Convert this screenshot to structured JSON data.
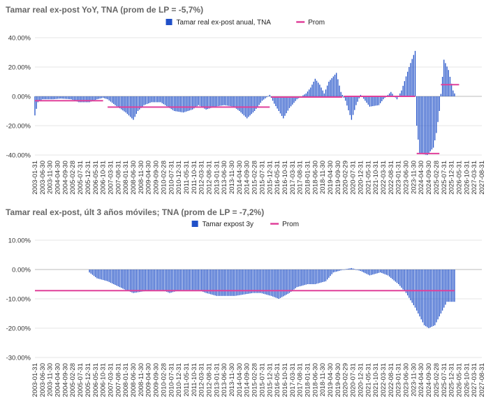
{
  "colors": {
    "bar": "#2050c8",
    "avg": "#e0409a",
    "grid": "#e6e6e6",
    "zero": "#bbbbbb"
  },
  "chart_data": [
    {
      "type": "bar",
      "title": "Tamar real ex-post YoY, TNA (prom de LP = -5,7%)",
      "ylim": [
        -40,
        40
      ],
      "yticks": [
        "40.00%",
        "20.00%",
        "0.00%",
        "-20.00%",
        "-40.00%"
      ],
      "legend": {
        "placement": "top-center",
        "bar_label": "Tamar real ex-post anual, TNA",
        "line_label": "Prom"
      },
      "x_start": "2003-01",
      "x_end": "2027-08",
      "xticks": [
        "2003-01-31",
        "2003-06-30",
        "2003-11-30",
        "2004-04-30",
        "2004-09-30",
        "2005-02-28",
        "2005-07-31",
        "2005-12-31",
        "2006-05-31",
        "2006-10-31",
        "2007-03-31",
        "2007-08-31",
        "2008-01-31",
        "2008-06-30",
        "2008-11-30",
        "2009-04-30",
        "2009-09-30",
        "2010-02-28",
        "2010-07-31",
        "2010-12-31",
        "2011-05-31",
        "2011-10-31",
        "2012-03-31",
        "2012-08-31",
        "2013-01-31",
        "2013-06-30",
        "2013-11-30",
        "2014-04-30",
        "2014-09-30",
        "2015-02-28",
        "2015-07-31",
        "2015-12-31",
        "2016-05-31",
        "2016-10-31",
        "2017-03-31",
        "2017-08-31",
        "2018-01-31",
        "2018-06-30",
        "2018-11-30",
        "2019-04-30",
        "2019-09-30",
        "2020-02-29",
        "2020-07-31",
        "2020-12-31",
        "2021-05-31",
        "2021-10-31",
        "2022-03-31",
        "2022-08-31",
        "2023-01-31",
        "2023-06-30",
        "2023-11-30",
        "2024-04-30",
        "2024-09-30",
        "2025-02-28",
        "2025-07-31",
        "2025-12-31",
        "2026-05-31",
        "2026-10-31",
        "2027-03-31",
        "2027-08-31"
      ],
      "series_keypoints": [
        [
          "2003-01",
          -13
        ],
        [
          "2003-03",
          -4
        ],
        [
          "2003-06",
          -2
        ],
        [
          "2004-01",
          -2
        ],
        [
          "2004-06",
          -1.5
        ],
        [
          "2005-01",
          -2
        ],
        [
          "2005-06",
          -4
        ],
        [
          "2006-01",
          -4
        ],
        [
          "2006-06",
          -2
        ],
        [
          "2006-10",
          -1
        ],
        [
          "2007-01",
          -2
        ],
        [
          "2007-06",
          -6
        ],
        [
          "2008-01",
          -11
        ],
        [
          "2008-06",
          -16
        ],
        [
          "2008-09",
          -10
        ],
        [
          "2009-01",
          -6
        ],
        [
          "2009-06",
          -4
        ],
        [
          "2009-12",
          -4
        ],
        [
          "2010-03",
          -6
        ],
        [
          "2010-09",
          -10
        ],
        [
          "2011-03",
          -11
        ],
        [
          "2011-09",
          -9
        ],
        [
          "2012-01",
          -6
        ],
        [
          "2012-06",
          -9
        ],
        [
          "2012-12",
          -7
        ],
        [
          "2013-06",
          -6
        ],
        [
          "2013-12",
          -7
        ],
        [
          "2014-04",
          -10
        ],
        [
          "2014-09",
          -15
        ],
        [
          "2015-02",
          -10
        ],
        [
          "2015-07",
          -3
        ],
        [
          "2015-12",
          1
        ],
        [
          "2016-03",
          -5
        ],
        [
          "2016-09",
          -15
        ],
        [
          "2017-01",
          -8
        ],
        [
          "2017-06",
          -2
        ],
        [
          "2017-12",
          2
        ],
        [
          "2018-03",
          6
        ],
        [
          "2018-06",
          12
        ],
        [
          "2018-09",
          8
        ],
        [
          "2018-12",
          2
        ],
        [
          "2019-03",
          10
        ],
        [
          "2019-08",
          16
        ],
        [
          "2019-11",
          3
        ],
        [
          "2020-02",
          -3
        ],
        [
          "2020-06",
          -16
        ],
        [
          "2020-09",
          -6
        ],
        [
          "2020-12",
          1
        ],
        [
          "2021-06",
          -7
        ],
        [
          "2021-12",
          -6
        ],
        [
          "2022-03",
          -2
        ],
        [
          "2022-08",
          3
        ],
        [
          "2022-12",
          -2
        ],
        [
          "2023-03",
          4
        ],
        [
          "2023-08",
          20
        ],
        [
          "2023-12",
          31
        ],
        [
          "2024-01",
          -20
        ],
        [
          "2024-03",
          -39
        ],
        [
          "2024-08",
          -40
        ],
        [
          "2024-12",
          -35
        ],
        [
          "2025-02",
          -25
        ],
        [
          "2025-04",
          -10
        ],
        [
          "2025-07",
          25
        ],
        [
          "2025-10",
          18
        ],
        [
          "2026-01",
          4
        ],
        [
          "2026-02",
          2
        ]
      ],
      "averages": [
        {
          "from": "2003-01",
          "to": "2006-10",
          "value": -3
        },
        {
          "from": "2007-01",
          "to": "2015-12",
          "value": -7.3
        },
        {
          "from": "2016-01",
          "to": "2019-12",
          "value": -0.5
        },
        {
          "from": "2020-01",
          "to": "2023-12",
          "value": 0
        },
        {
          "from": "2024-01",
          "to": "2025-04",
          "value": -39
        },
        {
          "from": "2025-05",
          "to": "2026-05",
          "value": 8
        }
      ]
    },
    {
      "type": "bar",
      "title": "Tamar real ex-post, últ 3 años móviles; TNA (prom de LP = -7,2%)",
      "ylim": [
        -30,
        10
      ],
      "yticks": [
        "10.00%",
        "0.00%",
        "-10.00%",
        "-20.00%",
        "-30.00%"
      ],
      "legend": {
        "placement": "top-center",
        "bar_label": "Tamar expost 3y",
        "line_label": "Prom"
      },
      "x_start": "2003-01",
      "x_end": "2027-08",
      "xticks": [
        "2003-01-31",
        "2003-06-30",
        "2003-11-30",
        "2004-04-30",
        "2004-09-30",
        "2005-02-28",
        "2005-07-31",
        "2005-12-31",
        "2006-05-31",
        "2006-10-31",
        "2007-03-31",
        "2007-08-31",
        "2008-01-31",
        "2008-06-30",
        "2008-11-30",
        "2009-04-30",
        "2009-09-30",
        "2010-02-28",
        "2010-07-31",
        "2010-12-31",
        "2011-05-31",
        "2011-10-31",
        "2012-03-31",
        "2012-08-31",
        "2013-01-31",
        "2013-06-30",
        "2013-11-30",
        "2014-04-30",
        "2014-09-30",
        "2015-02-28",
        "2015-07-31",
        "2015-12-31",
        "2016-05-31",
        "2016-10-31",
        "2017-03-31",
        "2017-08-31",
        "2018-01-31",
        "2018-06-30",
        "2018-11-30",
        "2019-04-30",
        "2019-09-30",
        "2020-02-29",
        "2020-07-31",
        "2020-12-31",
        "2021-05-31",
        "2021-10-31",
        "2022-03-31",
        "2022-08-31",
        "2023-01-31",
        "2023-06-30",
        "2023-11-30",
        "2024-04-30",
        "2024-09-30",
        "2025-02-28",
        "2025-07-31",
        "2025-12-31",
        "2026-05-31",
        "2026-10-31",
        "2027-03-31",
        "2027-08-31"
      ],
      "series_keypoints": [
        [
          "2006-01",
          -1
        ],
        [
          "2006-06",
          -3
        ],
        [
          "2007-01",
          -4
        ],
        [
          "2008-01",
          -7
        ],
        [
          "2008-06",
          -8
        ],
        [
          "2009-06",
          -7
        ],
        [
          "2010-01",
          -7
        ],
        [
          "2010-06",
          -8
        ],
        [
          "2011-01",
          -7
        ],
        [
          "2012-01",
          -7
        ],
        [
          "2012-06",
          -8
        ],
        [
          "2013-01",
          -9
        ],
        [
          "2013-06",
          -9
        ],
        [
          "2014-01",
          -9
        ],
        [
          "2015-01",
          -8
        ],
        [
          "2015-06",
          -8
        ],
        [
          "2016-01",
          -9
        ],
        [
          "2016-06",
          -10
        ],
        [
          "2017-01",
          -8
        ],
        [
          "2017-06",
          -6
        ],
        [
          "2018-01",
          -5
        ],
        [
          "2018-06",
          -5
        ],
        [
          "2019-01",
          -4
        ],
        [
          "2019-06",
          -1
        ],
        [
          "2020-01",
          0
        ],
        [
          "2020-06",
          0.5
        ],
        [
          "2020-12",
          -0.5
        ],
        [
          "2021-06",
          -2
        ],
        [
          "2022-01",
          -1
        ],
        [
          "2022-06",
          -2
        ],
        [
          "2023-01",
          -5
        ],
        [
          "2023-06",
          -8
        ],
        [
          "2023-12",
          -13
        ],
        [
          "2024-06",
          -19
        ],
        [
          "2024-09",
          -20
        ],
        [
          "2025-01",
          -19
        ],
        [
          "2025-06",
          -14
        ],
        [
          "2025-09",
          -11
        ],
        [
          "2026-02",
          -11
        ]
      ],
      "averages": [
        {
          "from": "2003-01",
          "to": "2026-02",
          "value": -7.2
        }
      ]
    }
  ]
}
